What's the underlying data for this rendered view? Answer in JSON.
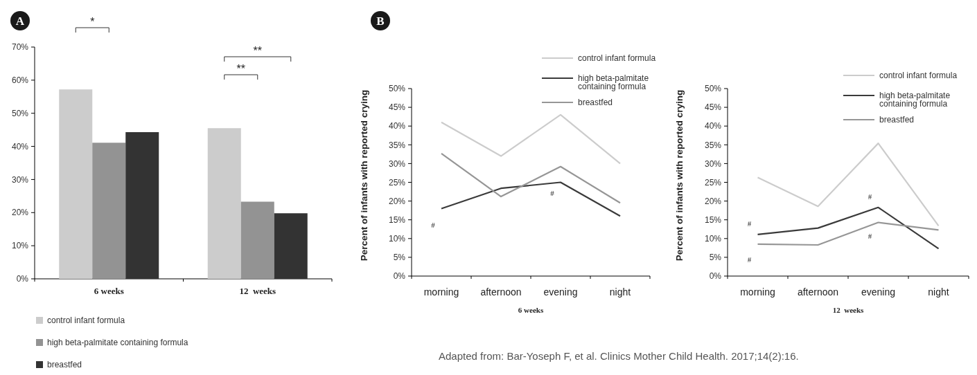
{
  "chart_data": [
    {
      "type": "bar",
      "categories": [
        "6 weeks",
        "12  weeks"
      ],
      "ylim": [
        0,
        70
      ],
      "yticks": [
        {
          "value": 0,
          "label": "0%"
        },
        {
          "value": 10,
          "label": "10%"
        },
        {
          "value": 20,
          "label": "20%"
        },
        {
          "value": 30,
          "label": "30%"
        },
        {
          "value": 40,
          "label": "40%"
        },
        {
          "value": 50,
          "label": "50%"
        },
        {
          "value": 60,
          "label": "60%"
        },
        {
          "value": 70,
          "label": "70%"
        }
      ],
      "legend": "bottom left",
      "grid": false,
      "series": [
        {
          "name": "control infant formula",
          "color": "#cccccc",
          "values": [
            57.2,
            45.5
          ]
        },
        {
          "name": "high beta-palmitate containing formula",
          "color": "#939393",
          "values": [
            41.1,
            23.3
          ]
        },
        {
          "name": "breastfed",
          "color": "#333333",
          "values": [
            44.3,
            19.8
          ]
        }
      ],
      "annotations": [
        "A",
        "*",
        "**",
        "**"
      ]
    },
    {
      "type": "line",
      "categories": [
        "morning",
        "afternoon",
        "evening",
        "night"
      ],
      "xlabel": "6 weeks",
      "ylabel": "Percent of infants with reported crying",
      "ylim": [
        0,
        50
      ],
      "yticks": [
        {
          "value": 0,
          "label": "0%"
        },
        {
          "value": 5,
          "label": "5%"
        },
        {
          "value": 10,
          "label": "10%"
        },
        {
          "value": 15,
          "label": "15%"
        },
        {
          "value": 20,
          "label": "20%"
        },
        {
          "value": 25,
          "label": "25%"
        },
        {
          "value": 30,
          "label": "30%"
        },
        {
          "value": 35,
          "label": "35%"
        },
        {
          "value": 40,
          "label": "40%"
        },
        {
          "value": 45,
          "label": "45%"
        },
        {
          "value": 50,
          "label": "50%"
        }
      ],
      "legend": "top right",
      "grid": false,
      "marker": "none",
      "line_style": "solid",
      "series": [
        {
          "name": "control infant formula",
          "color": "#cccccc",
          "values": [
            41,
            32,
            43,
            30
          ]
        },
        {
          "name": "high beta-palmitate containing formula",
          "color": "#3a3a3a",
          "values": [
            18,
            23.4,
            25,
            16
          ]
        },
        {
          "name": "breastfed",
          "color": "#969696",
          "values": [
            32.7,
            21.2,
            29.2,
            19.5
          ]
        }
      ],
      "annotations": [
        "B",
        "Adapted from: Bar-Yoseph F, et al. Clinics Mother Child Health. 2017;14(2):16.",
        "#",
        "#"
      ]
    },
    {
      "type": "line",
      "categories": [
        "morning",
        "afternoon",
        "evening",
        "night"
      ],
      "xlabel": "12  weeks",
      "ylabel": "Percent of infants with reported crying",
      "ylim": [
        0,
        50
      ],
      "yticks": [
        {
          "value": 0,
          "label": "0%"
        },
        {
          "value": 5,
          "label": "5%"
        },
        {
          "value": 10,
          "label": "10%"
        },
        {
          "value": 15,
          "label": "15%"
        },
        {
          "value": 20,
          "label": "20%"
        },
        {
          "value": 25,
          "label": "25%"
        },
        {
          "value": 30,
          "label": "30%"
        },
        {
          "value": 35,
          "label": "35%"
        },
        {
          "value": 40,
          "label": "40%"
        },
        {
          "value": 45,
          "label": "45%"
        },
        {
          "value": 50,
          "label": "50%"
        }
      ],
      "legend": "top right",
      "grid": false,
      "marker": "none",
      "line_style": "solid",
      "series": [
        {
          "name": "control infant formula",
          "color": "#cccccc",
          "values": [
            26.3,
            18.6,
            35.4,
            13.4
          ]
        },
        {
          "name": "high beta-palmitate containing formula",
          "color": "#3a3a3a",
          "values": [
            11.1,
            12.8,
            18.3,
            7.3
          ]
        },
        {
          "name": "breastfed",
          "color": "#969696",
          "values": [
            8.5,
            8.3,
            14.3,
            12.3
          ]
        }
      ],
      "annotations": [
        "#",
        "#",
        "#",
        "#"
      ]
    }
  ]
}
